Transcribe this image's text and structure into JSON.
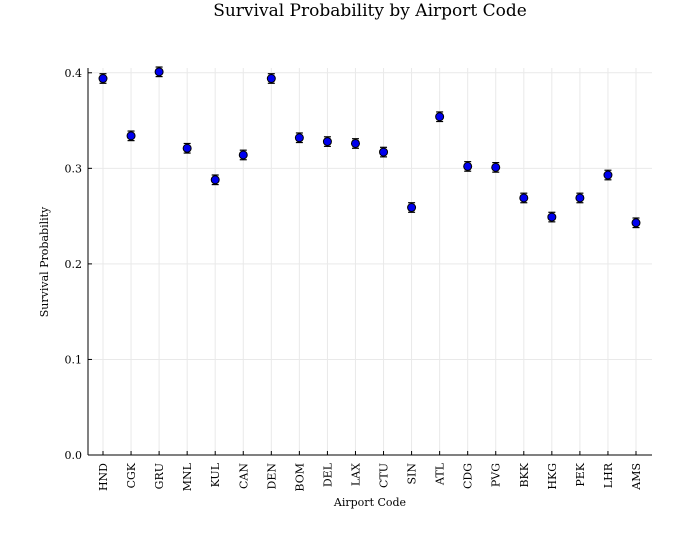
{
  "chart_data": {
    "type": "scatter",
    "title": "Survival Probability by Airport Code",
    "xlabel": "Airport Code",
    "ylabel": "Survival Probability",
    "categories": [
      "HND",
      "CGK",
      "GRU",
      "MNL",
      "KUL",
      "CAN",
      "DEN",
      "BOM",
      "DEL",
      "LAX",
      "CTU",
      "SIN",
      "ATL",
      "CDG",
      "PVG",
      "BKK",
      "HKG",
      "PEK",
      "LHR",
      "AMS"
    ],
    "series": [
      {
        "values": [
          0.394,
          0.334,
          0.401,
          0.321,
          0.288,
          0.314,
          0.394,
          0.332,
          0.328,
          0.326,
          0.317,
          0.259,
          0.354,
          0.302,
          0.301,
          0.269,
          0.249,
          0.269,
          0.293,
          0.243
        ],
        "error": [
          0.005,
          0.005,
          0.005,
          0.005,
          0.005,
          0.005,
          0.005,
          0.005,
          0.005,
          0.005,
          0.005,
          0.005,
          0.005,
          0.005,
          0.005,
          0.005,
          0.005,
          0.005,
          0.005,
          0.005
        ]
      }
    ],
    "ylim": [
      0,
      0.405
    ],
    "yticks": [
      0.0,
      0.1,
      0.2,
      0.3,
      0.4
    ],
    "ytick_labels": [
      "0.0",
      "0.1",
      "0.2",
      "0.3",
      "0.4"
    ],
    "grid": true,
    "legend": "none",
    "colors": {
      "marker": "#0000ee",
      "errorbar": "#000000",
      "grid": "#e9e9e9"
    }
  }
}
